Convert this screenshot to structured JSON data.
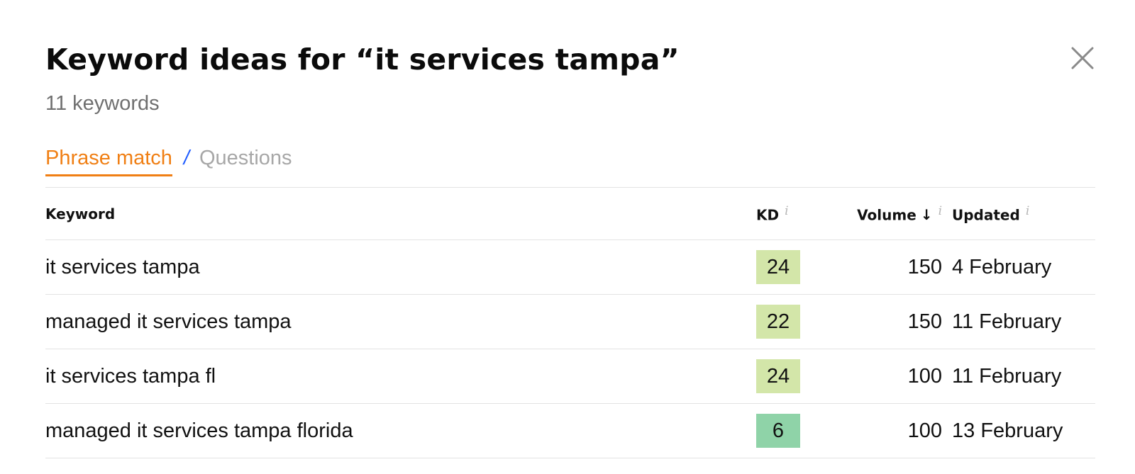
{
  "modal": {
    "title": "Keyword ideas for “it services tampa”",
    "subtitle": "11 keywords",
    "close_icon": "close-icon"
  },
  "tabs": {
    "active_label": "Phrase match",
    "separator": "/",
    "inactive_label": "Questions"
  },
  "table": {
    "headers": {
      "keyword": "Keyword",
      "kd": "KD",
      "volume": "Volume",
      "updated": "Updated",
      "info_glyph": "i",
      "sort_glyph": "↓"
    },
    "rows": [
      {
        "keyword": "it services tampa",
        "kd": "24",
        "kd_color": "#d3e6a9",
        "volume": "150",
        "updated": "4 February"
      },
      {
        "keyword": "managed it services tampa",
        "kd": "22",
        "kd_color": "#d3e6a9",
        "volume": "150",
        "updated": "11 February"
      },
      {
        "keyword": "it services tampa fl",
        "kd": "24",
        "kd_color": "#d3e6a9",
        "volume": "100",
        "updated": "11 February"
      },
      {
        "keyword": "managed it services tampa florida",
        "kd": "6",
        "kd_color": "#8fd3a8",
        "volume": "100",
        "updated": "13 February"
      }
    ]
  },
  "colors": {
    "accent_orange": "#f07f14",
    "separator_blue": "#1f5cff",
    "muted_text": "#6f6f6f",
    "inactive_tab": "#a7a7a7"
  }
}
